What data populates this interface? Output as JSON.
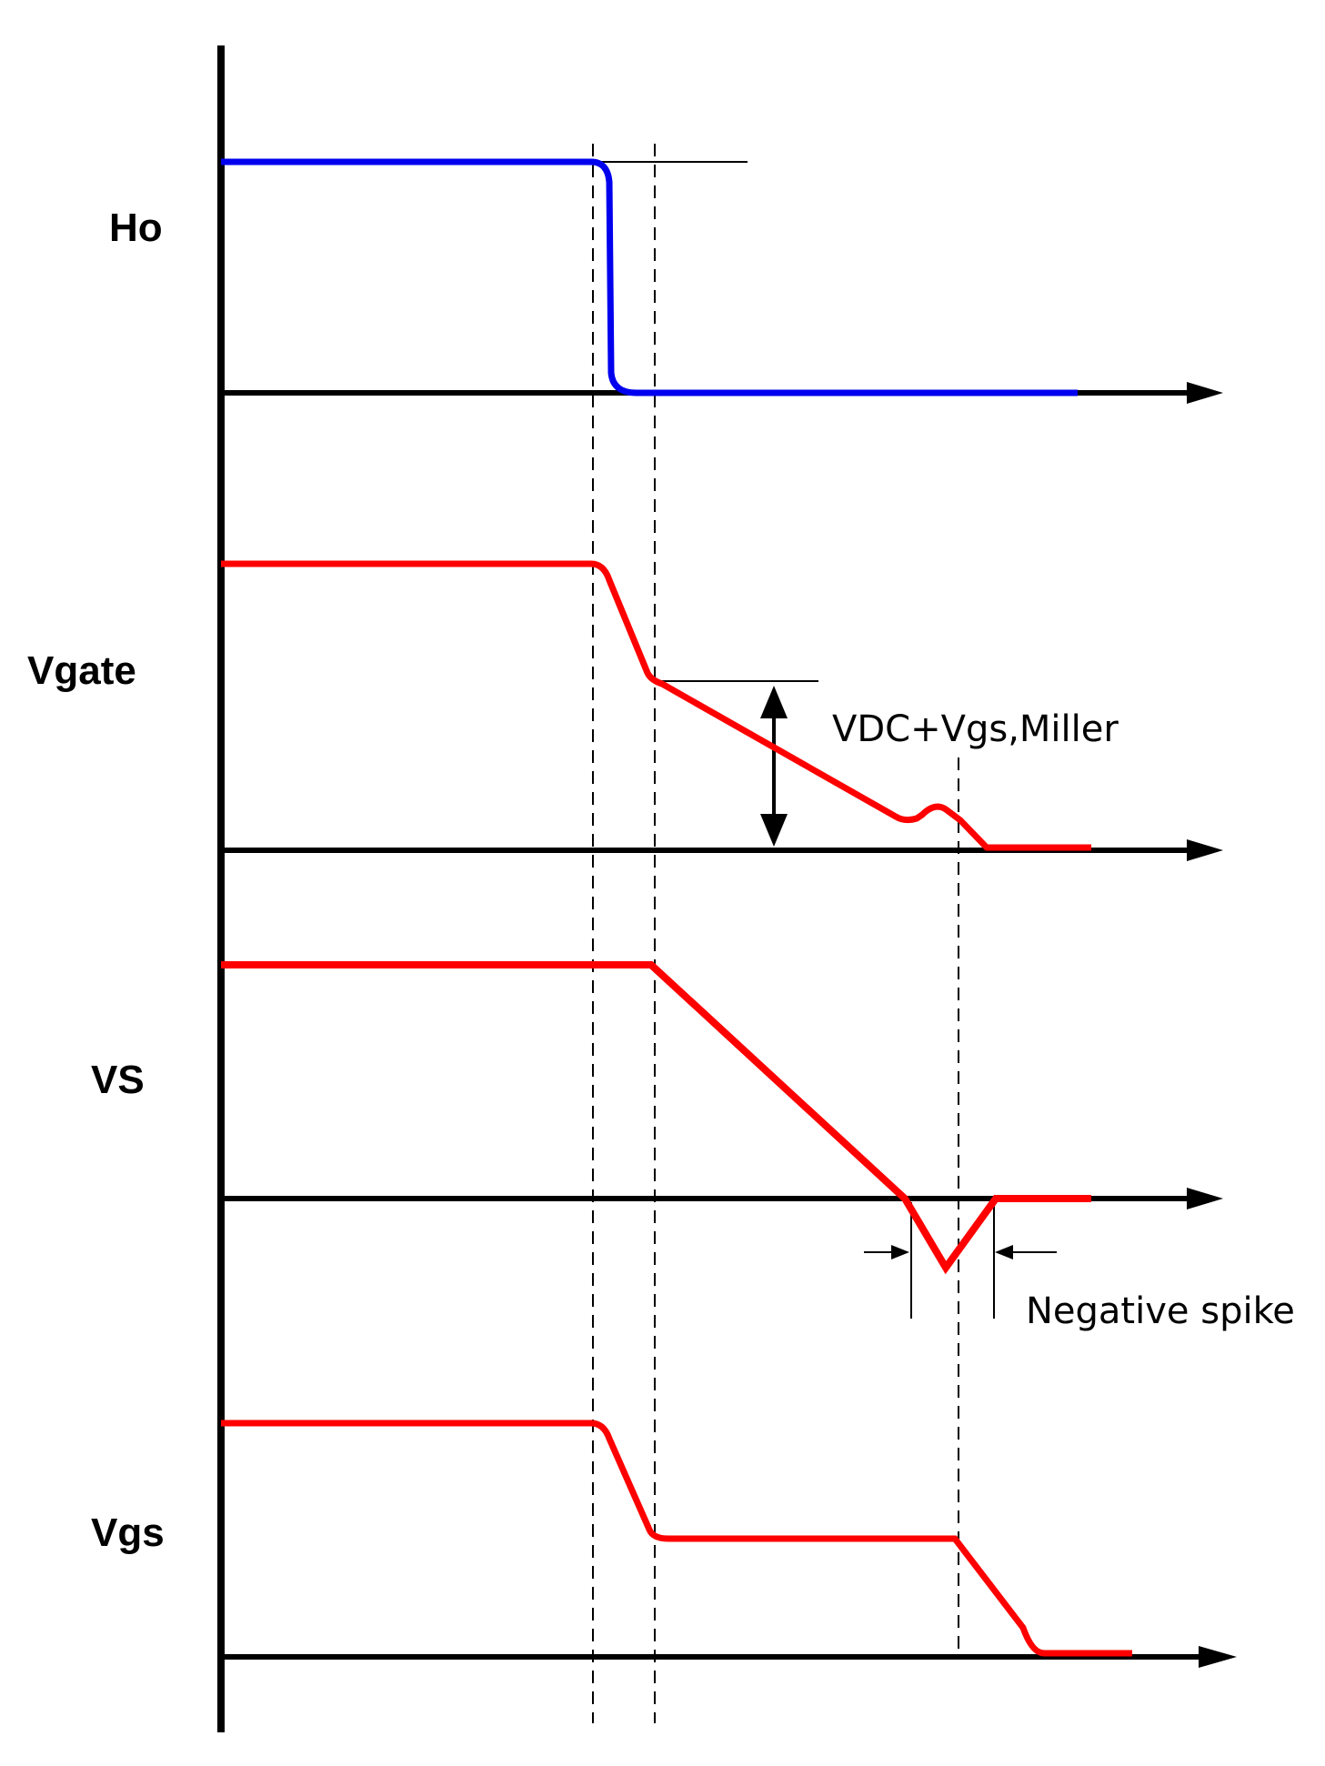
{
  "signals": [
    {
      "id": "ho",
      "label": "Ho",
      "color": "#0000ee"
    },
    {
      "id": "vgate",
      "label": "Vgate",
      "color": "#ff0000"
    },
    {
      "id": "vs",
      "label": "VS",
      "color": "#ff0000"
    },
    {
      "id": "vgs",
      "label": "Vgs",
      "color": "#ff0000"
    }
  ],
  "annotations": {
    "miller": "VDC+Vgs,Miller",
    "spike": "Negative spike"
  },
  "colors": {
    "axis": "#000000",
    "guide": "#000000"
  }
}
